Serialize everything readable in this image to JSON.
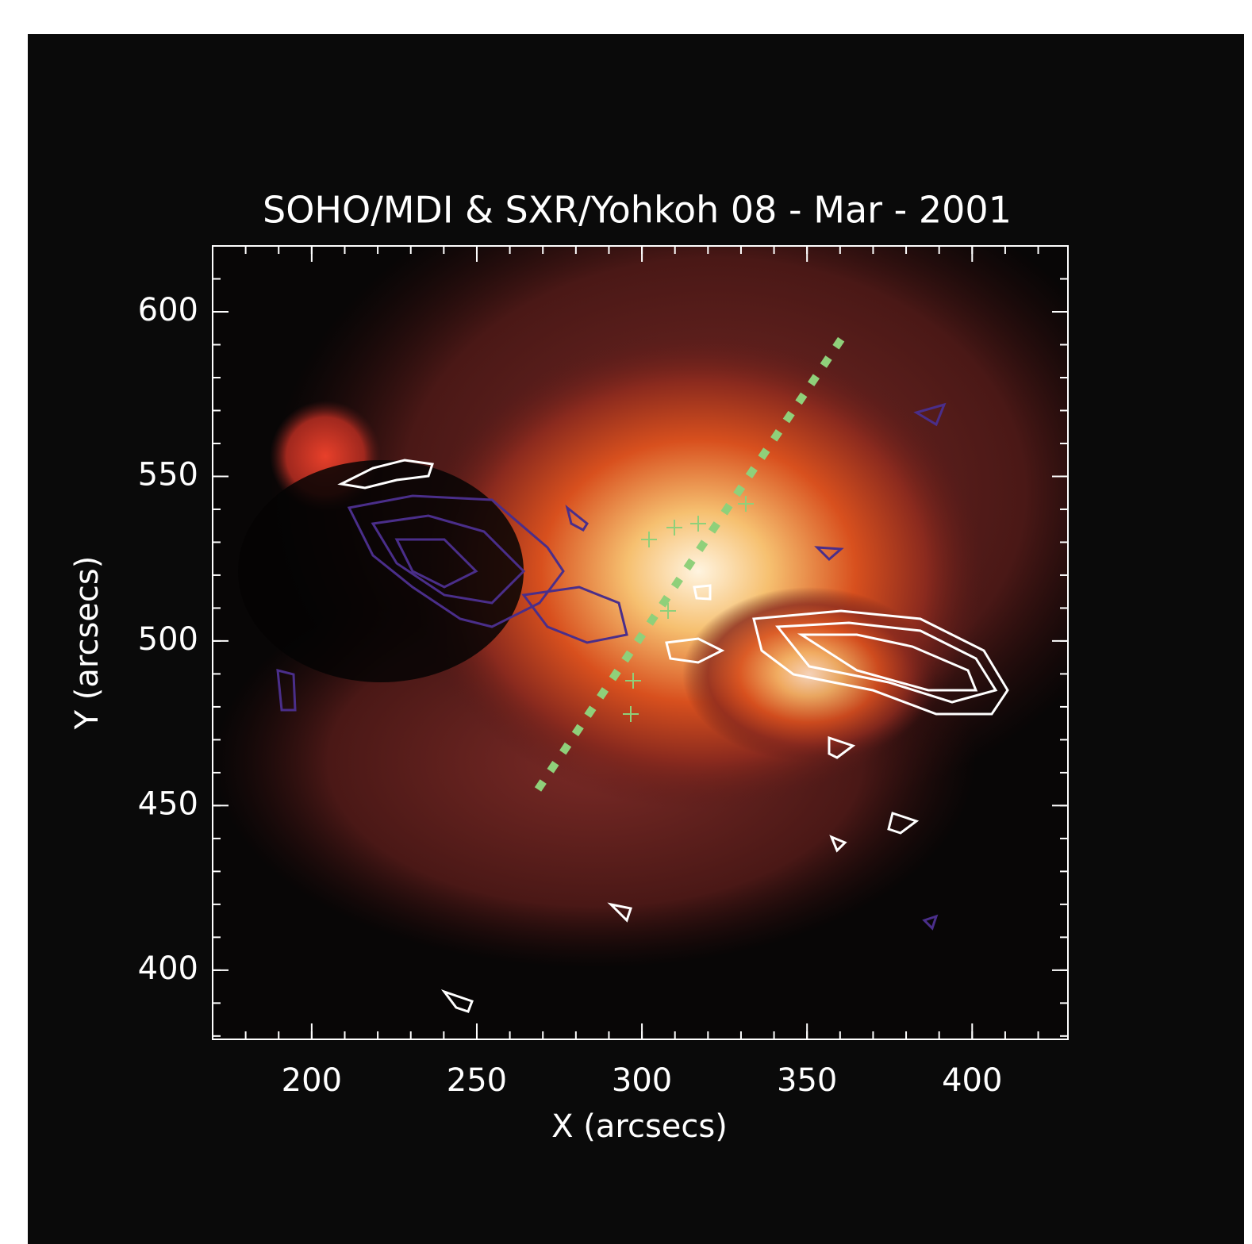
{
  "chart_data": {
    "type": "image",
    "title": "SOHO/MDI & SXR/Yohkoh 08 - Mar - 2001",
    "x_label": "X (arcsecs)",
    "y_label": "Y (arcsecs)",
    "xlim": [
      170,
      429
    ],
    "ylim": [
      379,
      620
    ],
    "xticks": [
      200,
      250,
      300,
      350,
      400
    ],
    "yticks": [
      400,
      450,
      500,
      550,
      600
    ]
  }
}
